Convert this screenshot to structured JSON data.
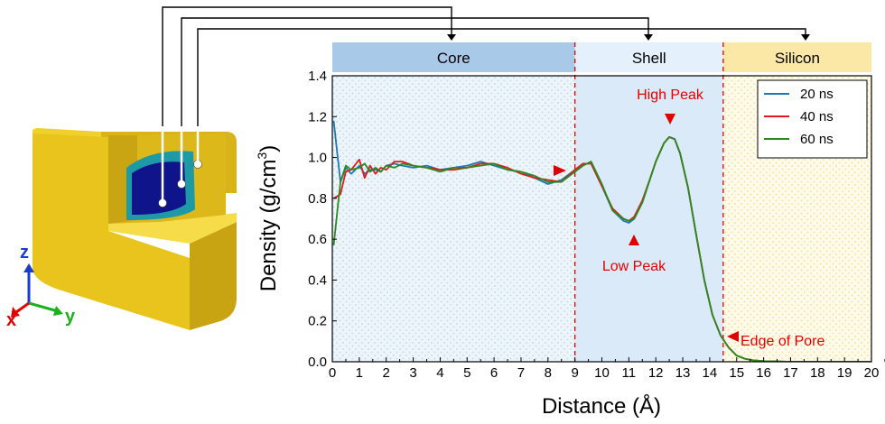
{
  "chart_data": {
    "type": "line",
    "xlabel": "Distance (Å)",
    "ylabel": "Density (g/cm",
    "ylabel_sup": "3",
    "ylabel_end": ")",
    "xlim": [
      0,
      20
    ],
    "ylim": [
      0,
      1.4
    ],
    "xticks": [
      "0",
      "1",
      "2",
      "3",
      "4",
      "5",
      "6",
      "7",
      "8",
      "9",
      "10",
      "11",
      "12",
      "13",
      "14",
      "15",
      "16",
      "17",
      "18",
      "19",
      "20"
    ],
    "yticks": [
      "0.0",
      "0.2",
      "0.4",
      "0.6",
      "0.8",
      "1.0",
      "1.2",
      "1.4"
    ],
    "grid": false,
    "legend": "top-right",
    "regions": [
      {
        "label": "Core",
        "x": [
          0,
          9.0
        ],
        "color": "#a9c9e8",
        "bg": "#edf5fb"
      },
      {
        "label": "Shell",
        "x": [
          9.0,
          14.5
        ],
        "color": "#e4f0fb",
        "bg": "#dbeaf8"
      },
      {
        "label": "Silicon",
        "x": [
          14.5,
          20
        ],
        "color": "#fbe7a6",
        "bg": "#fffbea"
      }
    ],
    "boundaries": [
      9.0,
      14.5
    ],
    "annotations": [
      "High Peak",
      "Low Peak",
      "Edge of Pore"
    ],
    "series": [
      {
        "name": "20 ns",
        "color": "#1f77b4",
        "x": [
          0.05,
          0.3,
          0.5,
          0.7,
          1.0,
          1.2,
          1.4,
          1.6,
          1.8,
          2.0,
          2.3,
          2.6,
          3.0,
          3.5,
          4.0,
          4.5,
          5.0,
          5.5,
          6.0,
          6.5,
          7.0,
          7.5,
          8.0,
          8.5,
          9.0,
          9.3,
          9.6,
          10.0,
          10.4,
          10.8,
          11.0,
          11.2,
          11.5,
          11.8,
          12.0,
          12.3,
          12.5,
          12.7,
          12.9,
          13.2,
          13.5,
          13.8,
          14.1,
          14.4,
          14.7,
          15.0,
          15.3,
          15.6,
          16.0,
          17.0,
          18.0,
          19.0,
          20.0
        ],
        "y": [
          1.18,
          0.88,
          0.95,
          0.92,
          0.96,
          0.92,
          0.94,
          0.94,
          0.93,
          0.96,
          0.97,
          0.96,
          0.95,
          0.96,
          0.94,
          0.95,
          0.96,
          0.98,
          0.96,
          0.94,
          0.93,
          0.9,
          0.87,
          0.89,
          0.94,
          0.97,
          0.97,
          0.86,
          0.74,
          0.69,
          0.68,
          0.7,
          0.78,
          0.9,
          0.98,
          1.07,
          1.1,
          1.09,
          1.02,
          0.85,
          0.62,
          0.4,
          0.23,
          0.13,
          0.07,
          0.03,
          0.015,
          0.007,
          0.003,
          0.0,
          0.0,
          0.0,
          0.0
        ]
      },
      {
        "name": "40 ns",
        "color": "#e41a1c",
        "x": [
          0.05,
          0.3,
          0.5,
          0.7,
          1.0,
          1.2,
          1.4,
          1.6,
          1.8,
          2.0,
          2.3,
          2.6,
          3.0,
          3.5,
          4.0,
          4.5,
          5.0,
          5.5,
          6.0,
          6.5,
          7.0,
          7.5,
          8.0,
          8.5,
          9.0,
          9.3,
          9.6,
          10.0,
          10.4,
          10.8,
          11.0,
          11.2,
          11.5,
          11.8,
          12.0,
          12.3,
          12.5,
          12.7,
          12.9,
          13.2,
          13.5,
          13.8,
          14.1,
          14.4,
          14.7,
          15.0,
          15.3,
          15.6,
          16.0,
          17.0,
          18.0,
          19.0,
          20.0
        ],
        "y": [
          0.8,
          0.82,
          0.93,
          0.94,
          0.99,
          0.9,
          0.96,
          0.92,
          0.95,
          0.94,
          0.98,
          0.98,
          0.96,
          0.95,
          0.94,
          0.94,
          0.95,
          0.97,
          0.97,
          0.95,
          0.92,
          0.9,
          0.89,
          0.88,
          0.94,
          0.97,
          0.97,
          0.86,
          0.75,
          0.7,
          0.69,
          0.71,
          0.79,
          0.9,
          0.98,
          1.07,
          1.1,
          1.09,
          1.02,
          0.85,
          0.62,
          0.4,
          0.23,
          0.13,
          0.07,
          0.03,
          0.015,
          0.007,
          0.003,
          0.0,
          0.0,
          0.0,
          0.0
        ]
      },
      {
        "name": "60 ns",
        "color": "#2a8a1b",
        "x": [
          0.05,
          0.3,
          0.5,
          0.7,
          1.0,
          1.2,
          1.4,
          1.6,
          1.8,
          2.0,
          2.3,
          2.6,
          3.0,
          3.5,
          4.0,
          4.5,
          5.0,
          5.5,
          6.0,
          6.5,
          7.0,
          7.5,
          8.0,
          8.5,
          9.0,
          9.3,
          9.6,
          10.0,
          10.4,
          10.8,
          11.0,
          11.2,
          11.5,
          11.8,
          12.0,
          12.3,
          12.5,
          12.7,
          12.9,
          13.2,
          13.5,
          13.8,
          14.1,
          14.4,
          14.7,
          15.0,
          15.3,
          15.6,
          16.0,
          17.0,
          18.0,
          19.0,
          20.0
        ],
        "y": [
          0.57,
          0.88,
          0.96,
          0.94,
          0.95,
          0.97,
          0.93,
          0.95,
          0.93,
          0.96,
          0.95,
          0.97,
          0.96,
          0.95,
          0.93,
          0.95,
          0.95,
          0.96,
          0.97,
          0.94,
          0.93,
          0.91,
          0.88,
          0.88,
          0.93,
          0.96,
          0.98,
          0.87,
          0.74,
          0.7,
          0.69,
          0.7,
          0.78,
          0.9,
          0.98,
          1.07,
          1.1,
          1.09,
          1.02,
          0.85,
          0.62,
          0.4,
          0.23,
          0.13,
          0.07,
          0.03,
          0.015,
          0.007,
          0.003,
          0.0,
          0.0,
          0.0,
          0.0
        ]
      }
    ]
  },
  "icons": [
    "cube-model",
    "axis-triad"
  ],
  "axis_triad": {
    "x": "x",
    "y": "y",
    "z": "z",
    "x_color": "#e30000",
    "y_color": "#1ab21a",
    "z_color": "#1a3bd6"
  },
  "colors": {
    "cube": "#e7c51f",
    "core": "#10148a",
    "shell": "#1e9aa6",
    "annotation": "#e10000",
    "connector": "#000000"
  }
}
